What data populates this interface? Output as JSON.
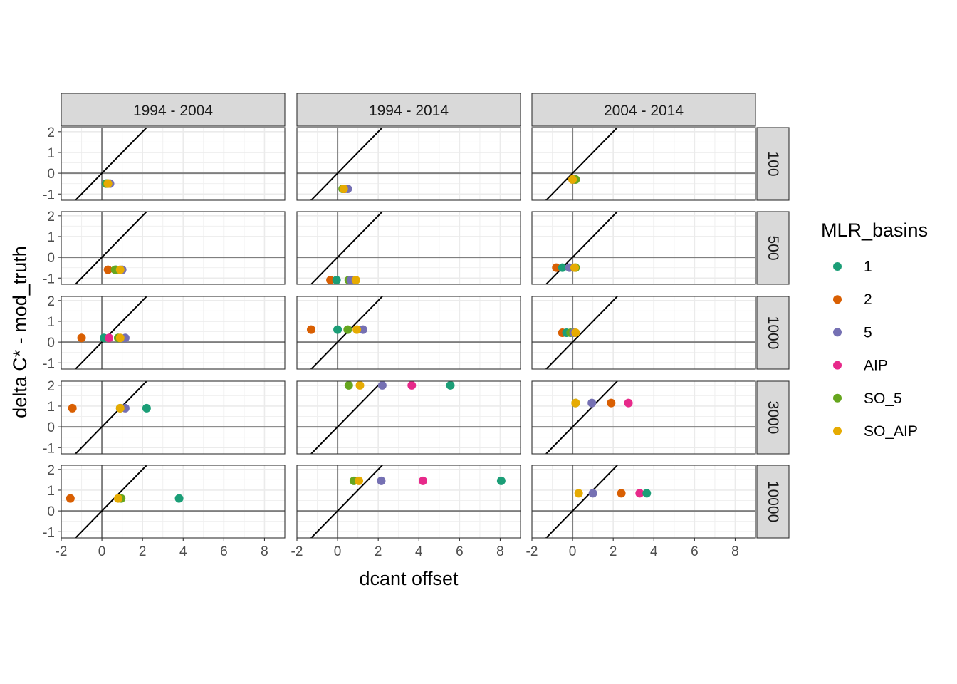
{
  "chart_data": {
    "type": "scatter",
    "title": "",
    "xlabel": "dcant offset",
    "ylabel": "delta C* - mod_truth",
    "xlim": [
      -2,
      9
    ],
    "ylim": [
      -1.3,
      2.2
    ],
    "x_ticks": [
      -2,
      0,
      2,
      4,
      6,
      8
    ],
    "y_ticks": [
      -1,
      0,
      1,
      2
    ],
    "grid": true,
    "reference_lines": [
      "x = 0",
      "y = 0",
      "y = x"
    ],
    "column_facets": [
      "1994 - 2004",
      "1994 - 2014",
      "2004 - 2014"
    ],
    "row_facets": [
      "100",
      "500",
      "1000",
      "3000",
      "10000"
    ],
    "legend": {
      "title": "MLR_basins",
      "placement": "right",
      "entries": [
        {
          "label": "1",
          "color": "#1B9E77"
        },
        {
          "label": "2",
          "color": "#D95F02"
        },
        {
          "label": "5",
          "color": "#7570B3"
        },
        {
          "label": "AIP",
          "color": "#E7298A"
        },
        {
          "label": "SO_5",
          "color": "#66A61E"
        },
        {
          "label": "SO_AIP",
          "color": "#E6AB02"
        }
      ]
    },
    "panels": [
      {
        "col": "1994 - 2004",
        "row": "100",
        "points": [
          {
            "series": "1",
            "x": 0.2,
            "y": -0.5
          },
          {
            "series": "2",
            "x": 0.3,
            "y": -0.5
          },
          {
            "series": "5",
            "x": 0.4,
            "y": -0.5
          },
          {
            "series": "SO_5",
            "x": 0.25,
            "y": -0.5
          },
          {
            "series": "SO_AIP",
            "x": 0.3,
            "y": -0.5
          }
        ]
      },
      {
        "col": "1994 - 2014",
        "row": "100",
        "points": [
          {
            "series": "1",
            "x": 0.3,
            "y": -0.75
          },
          {
            "series": "2",
            "x": 0.35,
            "y": -0.75
          },
          {
            "series": "5",
            "x": 0.5,
            "y": -0.75
          },
          {
            "series": "SO_5",
            "x": 0.25,
            "y": -0.75
          },
          {
            "series": "SO_AIP",
            "x": 0.3,
            "y": -0.75
          }
        ]
      },
      {
        "col": "2004 - 2014",
        "row": "100",
        "points": [
          {
            "series": "1",
            "x": 0.1,
            "y": -0.3
          },
          {
            "series": "2",
            "x": 0.0,
            "y": -0.3
          },
          {
            "series": "5",
            "x": 0.05,
            "y": -0.3
          },
          {
            "series": "SO_5",
            "x": 0.15,
            "y": -0.3
          },
          {
            "series": "SO_AIP",
            "x": 0.0,
            "y": -0.3
          }
        ]
      },
      {
        "col": "1994 - 2004",
        "row": "500",
        "points": [
          {
            "series": "2",
            "x": 0.3,
            "y": -0.6
          },
          {
            "series": "1",
            "x": 0.7,
            "y": -0.6
          },
          {
            "series": "SO_5",
            "x": 0.65,
            "y": -0.6
          },
          {
            "series": "5",
            "x": 1.0,
            "y": -0.6
          },
          {
            "series": "SO_AIP",
            "x": 0.9,
            "y": -0.6
          }
        ]
      },
      {
        "col": "1994 - 2014",
        "row": "500",
        "points": [
          {
            "series": "2",
            "x": -0.35,
            "y": -1.1
          },
          {
            "series": "1",
            "x": -0.05,
            "y": -1.1
          },
          {
            "series": "SO_5",
            "x": 0.55,
            "y": -1.1
          },
          {
            "series": "5",
            "x": 0.65,
            "y": -1.1
          },
          {
            "series": "SO_AIP",
            "x": 0.9,
            "y": -1.1
          }
        ]
      },
      {
        "col": "2004 - 2014",
        "row": "500",
        "points": [
          {
            "series": "2",
            "x": -0.8,
            "y": -0.5
          },
          {
            "series": "1",
            "x": -0.5,
            "y": -0.5
          },
          {
            "series": "5",
            "x": -0.15,
            "y": -0.5
          },
          {
            "series": "SO_5",
            "x": 0.15,
            "y": -0.5
          },
          {
            "series": "SO_AIP",
            "x": 0.1,
            "y": -0.5
          }
        ]
      },
      {
        "col": "1994 - 2004",
        "row": "1000",
        "points": [
          {
            "series": "2",
            "x": -1.0,
            "y": 0.2
          },
          {
            "series": "1",
            "x": 0.1,
            "y": 0.2
          },
          {
            "series": "AIP",
            "x": 0.35,
            "y": 0.2
          },
          {
            "series": "SO_5",
            "x": 0.8,
            "y": 0.2
          },
          {
            "series": "5",
            "x": 1.15,
            "y": 0.2
          },
          {
            "series": "SO_AIP",
            "x": 0.9,
            "y": 0.2
          }
        ]
      },
      {
        "col": "1994 - 2014",
        "row": "1000",
        "points": [
          {
            "series": "2",
            "x": -1.3,
            "y": 0.6
          },
          {
            "series": "1",
            "x": 0.0,
            "y": 0.6
          },
          {
            "series": "SO_5",
            "x": 0.5,
            "y": 0.6
          },
          {
            "series": "5",
            "x": 1.25,
            "y": 0.6
          },
          {
            "series": "SO_AIP",
            "x": 0.95,
            "y": 0.6
          }
        ]
      },
      {
        "col": "2004 - 2014",
        "row": "1000",
        "points": [
          {
            "series": "2",
            "x": -0.5,
            "y": 0.45
          },
          {
            "series": "1",
            "x": -0.3,
            "y": 0.45
          },
          {
            "series": "SO_5",
            "x": -0.1,
            "y": 0.45
          },
          {
            "series": "5",
            "x": 0.05,
            "y": 0.45
          },
          {
            "series": "SO_AIP",
            "x": 0.15,
            "y": 0.45
          }
        ]
      },
      {
        "col": "1994 - 2004",
        "row": "3000",
        "points": [
          {
            "series": "2",
            "x": -1.45,
            "y": 0.9
          },
          {
            "series": "SO_5",
            "x": 0.9,
            "y": 0.9
          },
          {
            "series": "5",
            "x": 1.15,
            "y": 0.9
          },
          {
            "series": "SO_AIP",
            "x": 0.9,
            "y": 0.9
          },
          {
            "series": "1",
            "x": 2.2,
            "y": 0.9
          }
        ]
      },
      {
        "col": "1994 - 2014",
        "row": "3000",
        "points": [
          {
            "series": "SO_5",
            "x": 0.55,
            "y": 2.0
          },
          {
            "series": "SO_AIP",
            "x": 1.1,
            "y": 2.0
          },
          {
            "series": "5",
            "x": 2.2,
            "y": 2.0
          },
          {
            "series": "AIP",
            "x": 3.65,
            "y": 2.0
          },
          {
            "series": "1",
            "x": 5.55,
            "y": 2.0
          }
        ]
      },
      {
        "col": "2004 - 2014",
        "row": "3000",
        "points": [
          {
            "series": "SO_5",
            "x": 0.15,
            "y": 1.15
          },
          {
            "series": "SO_AIP",
            "x": 0.15,
            "y": 1.15
          },
          {
            "series": "5",
            "x": 0.95,
            "y": 1.15
          },
          {
            "series": "2",
            "x": 1.9,
            "y": 1.15
          },
          {
            "series": "AIP",
            "x": 2.75,
            "y": 1.15
          }
        ]
      },
      {
        "col": "1994 - 2004",
        "row": "10000",
        "points": [
          {
            "series": "2",
            "x": -1.55,
            "y": 0.6
          },
          {
            "series": "SO_5",
            "x": 0.95,
            "y": 0.6
          },
          {
            "series": "SO_AIP",
            "x": 0.8,
            "y": 0.6
          },
          {
            "series": "1",
            "x": 3.8,
            "y": 0.6
          }
        ]
      },
      {
        "col": "1994 - 2014",
        "row": "10000",
        "points": [
          {
            "series": "SO_5",
            "x": 0.8,
            "y": 1.45
          },
          {
            "series": "SO_AIP",
            "x": 1.05,
            "y": 1.45
          },
          {
            "series": "5",
            "x": 2.15,
            "y": 1.45
          },
          {
            "series": "AIP",
            "x": 4.2,
            "y": 1.45
          },
          {
            "series": "1",
            "x": 8.05,
            "y": 1.45
          }
        ]
      },
      {
        "col": "2004 - 2014",
        "row": "10000",
        "points": [
          {
            "series": "SO_AIP",
            "x": 0.3,
            "y": 0.85
          },
          {
            "series": "5",
            "x": 1.0,
            "y": 0.85
          },
          {
            "series": "2",
            "x": 2.4,
            "y": 0.85
          },
          {
            "series": "AIP",
            "x": 3.3,
            "y": 0.85
          },
          {
            "series": "1",
            "x": 3.65,
            "y": 0.85
          }
        ]
      }
    ]
  }
}
